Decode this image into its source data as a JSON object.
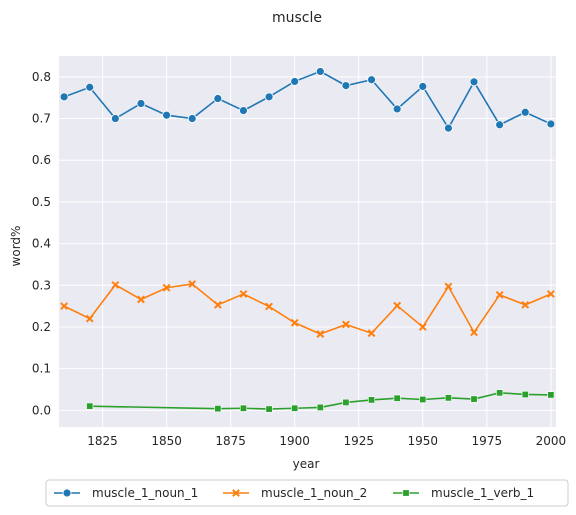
{
  "chart_data": {
    "type": "line",
    "title": "muscle",
    "xlabel": "year",
    "ylabel": "word%",
    "xlim": [
      1808,
      2002
    ],
    "ylim": [
      -0.04,
      0.85
    ],
    "xticks": [
      1825,
      1850,
      1875,
      1900,
      1925,
      1950,
      1975,
      2000
    ],
    "yticks": [
      0.0,
      0.1,
      0.2,
      0.3,
      0.4,
      0.5,
      0.6,
      0.7,
      0.8
    ],
    "grid": true,
    "legend_position": "bottom-center",
    "series": [
      {
        "name": "muscle_1_noun_1",
        "color": "#1f77b4",
        "marker": "circle",
        "x": [
          1810,
          1820,
          1830,
          1840,
          1850,
          1860,
          1870,
          1880,
          1890,
          1900,
          1910,
          1920,
          1930,
          1940,
          1950,
          1960,
          1970,
          1980,
          1990,
          2000
        ],
        "y": [
          0.752,
          0.775,
          0.7,
          0.736,
          0.708,
          0.7,
          0.748,
          0.719,
          0.752,
          0.789,
          0.813,
          0.779,
          0.793,
          0.723,
          0.777,
          0.677,
          0.788,
          0.685,
          0.715,
          0.687
        ]
      },
      {
        "name": "muscle_1_noun_2",
        "color": "#ff7f0e",
        "marker": "x",
        "x": [
          1810,
          1820,
          1830,
          1840,
          1850,
          1860,
          1870,
          1880,
          1890,
          1900,
          1910,
          1920,
          1930,
          1940,
          1950,
          1960,
          1970,
          1980,
          1990,
          2000
        ],
        "y": [
          0.25,
          0.22,
          0.301,
          0.266,
          0.294,
          0.303,
          0.253,
          0.279,
          0.249,
          0.21,
          0.183,
          0.206,
          0.185,
          0.251,
          0.2,
          0.297,
          0.187,
          0.277,
          0.253,
          0.279
        ]
      },
      {
        "name": "muscle_1_verb_1",
        "color": "#2ca02c",
        "marker": "square",
        "x": [
          1820,
          1870,
          1880,
          1890,
          1900,
          1910,
          1920,
          1930,
          1940,
          1950,
          1960,
          1970,
          1980,
          1990,
          2000
        ],
        "y": [
          0.01,
          0.004,
          0.005,
          0.003,
          0.005,
          0.007,
          0.019,
          0.025,
          0.029,
          0.026,
          0.03,
          0.027,
          0.042,
          0.038,
          0.037
        ]
      }
    ]
  }
}
